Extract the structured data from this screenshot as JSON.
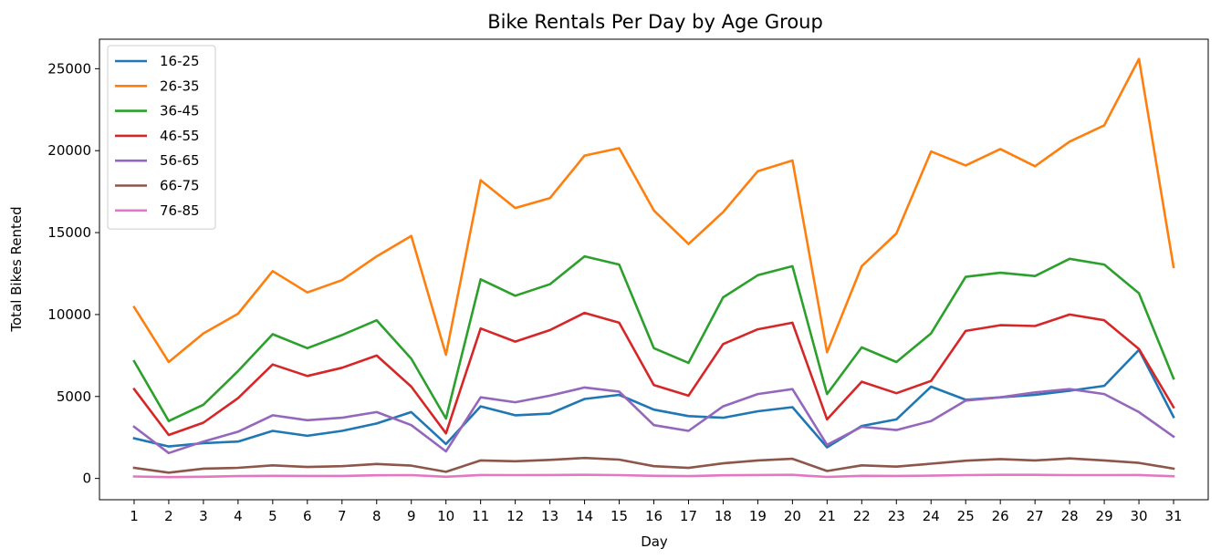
{
  "chart_data": {
    "type": "line",
    "title": "Bike Rentals Per Day by Age Group",
    "xlabel": "Day",
    "ylabel": "Total Bikes Rented",
    "x": [
      1,
      2,
      3,
      4,
      5,
      6,
      7,
      8,
      9,
      10,
      11,
      12,
      13,
      14,
      15,
      16,
      17,
      18,
      19,
      20,
      21,
      22,
      23,
      24,
      25,
      26,
      27,
      28,
      29,
      30,
      31
    ],
    "xlim": [
      0,
      32
    ],
    "ylim": [
      -1300,
      26800
    ],
    "yticks": [
      0,
      5000,
      10000,
      15000,
      20000,
      25000
    ],
    "grid": false,
    "legend": "top-left",
    "series": [
      {
        "name": "16-25",
        "color": "#1f77b4",
        "values": [
          2450,
          1950,
          2150,
          2250,
          2900,
          2600,
          2900,
          3350,
          4050,
          2100,
          4400,
          3850,
          3950,
          4850,
          5100,
          4200,
          3800,
          3700,
          4100,
          4350,
          1900,
          3200,
          3600,
          5600,
          4800,
          4950,
          5100,
          5350,
          5650,
          7850,
          3750
        ]
      },
      {
        "name": "26-35",
        "color": "#ff7f0e",
        "values": [
          10450,
          7100,
          8850,
          10050,
          12650,
          11350,
          12100,
          13550,
          14800,
          7550,
          18200,
          16500,
          17100,
          19700,
          20150,
          16350,
          14300,
          16250,
          18750,
          19400,
          7700,
          12950,
          14950,
          19950,
          19100,
          20100,
          19050,
          20550,
          21550,
          25600,
          12900
        ]
      },
      {
        "name": "36-45",
        "color": "#2ca02c",
        "values": [
          7150,
          3500,
          4500,
          6550,
          8800,
          7950,
          8750,
          9650,
          7300,
          3650,
          12150,
          11150,
          11850,
          13550,
          13050,
          7950,
          7050,
          11050,
          12400,
          12950,
          5150,
          8000,
          7100,
          8850,
          12300,
          12550,
          12350,
          13400,
          13050,
          11300,
          6100
        ]
      },
      {
        "name": "46-55",
        "color": "#d62728",
        "values": [
          5450,
          2650,
          3400,
          4900,
          6950,
          6250,
          6750,
          7500,
          5600,
          2750,
          9150,
          8350,
          9050,
          10100,
          9500,
          5700,
          5050,
          8200,
          9100,
          9500,
          3600,
          5900,
          5200,
          5950,
          9000,
          9350,
          9300,
          10000,
          9650,
          7900,
          4350
        ]
      },
      {
        "name": "56-65",
        "color": "#9467bd",
        "values": [
          3150,
          1550,
          2250,
          2850,
          3850,
          3550,
          3700,
          4050,
          3250,
          1650,
          4950,
          4650,
          5050,
          5550,
          5300,
          3250,
          2900,
          4400,
          5150,
          5450,
          2050,
          3150,
          2950,
          3500,
          4750,
          4950,
          5250,
          5450,
          5150,
          4050,
          2550
        ]
      },
      {
        "name": "66-75",
        "color": "#8c564b",
        "values": [
          650,
          350,
          600,
          650,
          800,
          700,
          750,
          880,
          780,
          400,
          1100,
          1050,
          1130,
          1250,
          1150,
          750,
          640,
          920,
          1100,
          1200,
          450,
          800,
          720,
          900,
          1080,
          1180,
          1100,
          1220,
          1100,
          950,
          600
        ]
      },
      {
        "name": "76-85",
        "color": "#e377c2",
        "values": [
          120,
          80,
          100,
          140,
          160,
          150,
          150,
          190,
          200,
          100,
          210,
          200,
          210,
          220,
          200,
          160,
          140,
          190,
          210,
          220,
          90,
          160,
          150,
          170,
          200,
          220,
          220,
          200,
          200,
          210,
          130
        ]
      }
    ]
  }
}
